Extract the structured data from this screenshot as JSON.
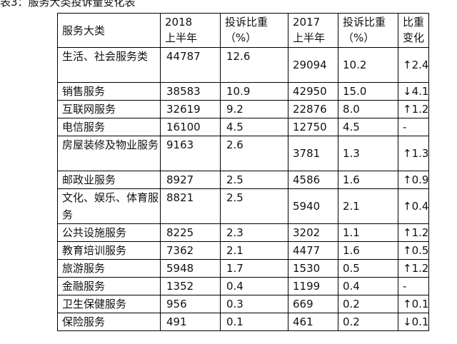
{
  "caption": "表3：服务大类投诉量变化表",
  "headers": {
    "category": "服务大类",
    "y2018_line1": "2018",
    "y2018_line2": "上半年",
    "share2018_line1": "投诉比重",
    "share2018_line2": "（%）",
    "y2017_line1": "2017",
    "y2017_line2": "上半年",
    "share2017_line1": "投诉比重",
    "share2017_line2": "（%）",
    "change_line1": "比重",
    "change_line2": "变化"
  },
  "rows": [
    {
      "category": "生活、社会服务类",
      "v2018": "44787",
      "p2018": "12.6",
      "v2017": "29094",
      "p2017": "10.2",
      "change": "↑2.4"
    },
    {
      "category": "销售服务",
      "v2018": "38583",
      "p2018": "10.9",
      "v2017": "42950",
      "p2017": "15.0",
      "change": "↓4.1"
    },
    {
      "category": "互联网服务",
      "v2018": "32619",
      "p2018": "9.2",
      "v2017": "22876",
      "p2017": "8.0",
      "change": "↑1.2"
    },
    {
      "category": "电信服务",
      "v2018": "16100",
      "p2018": "4.5",
      "v2017": "12750",
      "p2017": "4.5",
      "change": "-"
    },
    {
      "category": "房屋装修及物业服务",
      "v2018": "9163",
      "p2018": "2.6",
      "v2017": "3781",
      "p2017": "1.3",
      "change": "↑1.3"
    },
    {
      "category": "邮政业服务",
      "v2018": "8927",
      "p2018": "2.5",
      "v2017": "4586",
      "p2017": "1.6",
      "change": "↑0.9"
    },
    {
      "category": "文化、娱乐、体育服务",
      "v2018": "8821",
      "p2018": "2.5",
      "v2017": "5940",
      "p2017": "2.1",
      "change": "↑0.4"
    },
    {
      "category": "公共设施服务",
      "v2018": "8225",
      "p2018": "2.3",
      "v2017": "3202",
      "p2017": "1.1",
      "change": "↑1.2"
    },
    {
      "category": "教育培训服务",
      "v2018": "7362",
      "p2018": "2.1",
      "v2017": "4477",
      "p2017": "1.6",
      "change": "↑0.5"
    },
    {
      "category": "旅游服务",
      "v2018": "5948",
      "p2018": "1.7",
      "v2017": "1530",
      "p2017": "0.5",
      "change": "↑1.2"
    },
    {
      "category": "金融服务",
      "v2018": "1352",
      "p2018": "0.4",
      "v2017": "1199",
      "p2017": "0.4",
      "change": "-"
    },
    {
      "category": "卫生保健服务",
      "v2018": "956",
      "p2018": "0.3",
      "v2017": "669",
      "p2017": "0.2",
      "change": "↑0.1"
    },
    {
      "category": "保险服务",
      "v2018": "491",
      "p2018": "0.1",
      "v2017": "461",
      "p2017": "0.2",
      "change": "↓0.1"
    }
  ]
}
